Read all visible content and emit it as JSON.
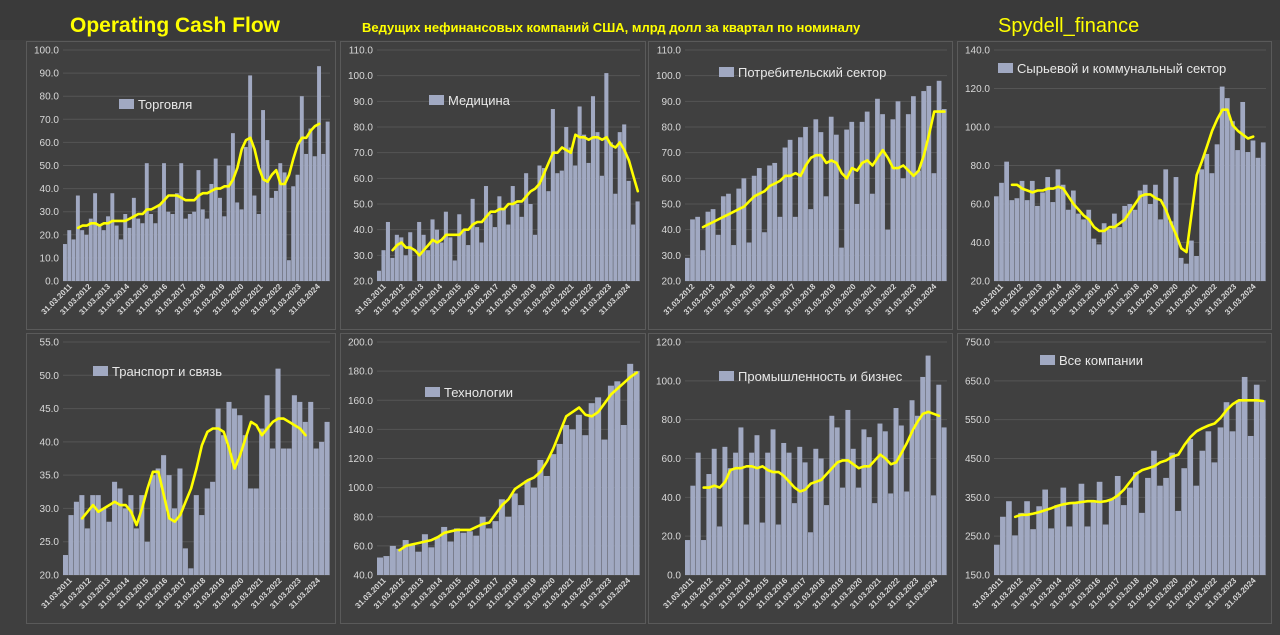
{
  "header": {
    "title": "Operating Cash Flow",
    "subtitle": "Ведущих нефинансовых компаний США, млрд долл за квартал по номиналу",
    "brand": "Spydell_finance"
  },
  "colors": {
    "bar": "#a1a9c2",
    "line": "#ffff00",
    "grid": "#555555",
    "axis_text": "#d9d9d9"
  },
  "chart_data": [
    {
      "id": "torgovlya",
      "type": "bar",
      "legend": "Торговля",
      "ylim": [
        0,
        100
      ],
      "yticks": [
        0,
        10,
        20,
        30,
        40,
        50,
        60,
        70,
        80,
        90,
        100
      ],
      "decimals": 1,
      "grid": true,
      "xticks": [
        "31.03.2011",
        "31.03.2012",
        "31.03.2013",
        "31.03.2014",
        "31.03.2015",
        "31.03.2016",
        "31.03.2017",
        "31.03.2018",
        "31.03.2019",
        "31.03.2020",
        "31.03.2021",
        "31.03.2022",
        "31.03.2023",
        "31.03.2024"
      ],
      "series": [
        {
          "values": [
            16,
            22,
            18,
            37,
            22,
            20,
            27,
            38,
            24,
            22,
            28,
            38,
            24,
            18,
            29,
            23,
            36,
            27,
            25,
            51,
            29,
            25,
            33,
            51,
            30,
            29,
            38,
            51,
            27,
            29,
            30,
            48,
            31,
            27,
            42,
            53,
            36,
            28,
            50,
            64,
            34,
            31,
            58,
            89,
            37,
            29,
            74,
            61,
            36,
            39,
            51,
            47,
            9,
            41,
            46,
            80,
            55,
            66,
            54,
            93,
            55,
            69
          ]
        },
        {
          "type": "line",
          "values": [
            null,
            null,
            null,
            23,
            24,
            24,
            25,
            25,
            24,
            25,
            25,
            26,
            26,
            26,
            26,
            27,
            28,
            29,
            29,
            31,
            31,
            32,
            33,
            35,
            37,
            37,
            37,
            36,
            35,
            35,
            35,
            37,
            38,
            38,
            39,
            40,
            40,
            41,
            41,
            44,
            49,
            57,
            61,
            62,
            57,
            49,
            44,
            43,
            46,
            48,
            42,
            42,
            46,
            53,
            59,
            62,
            62,
            65,
            67,
            68
          ]
        }
      ]
    },
    {
      "id": "medicina",
      "type": "bar",
      "legend": "Медицина",
      "ylim": [
        20,
        110
      ],
      "yticks": [
        20,
        30,
        40,
        50,
        60,
        70,
        80,
        90,
        100,
        110
      ],
      "decimals": 1,
      "grid": true,
      "xticks": [
        "31.03.2011",
        "31.03.2012",
        "31.03.2013",
        "31.03.2014",
        "31.03.2015",
        "31.03.2016",
        "31.03.2017",
        "31.03.2018",
        "31.03.2019",
        "31.03.2020",
        "31.03.2021",
        "31.03.2022",
        "31.03.2023",
        "31.03.2024"
      ],
      "series": [
        {
          "values": [
            24,
            32,
            43,
            29,
            38,
            37,
            30,
            39,
            20,
            43,
            38,
            32,
            44,
            40,
            35,
            47,
            37,
            28,
            46,
            40,
            34,
            52,
            41,
            35,
            57,
            46,
            41,
            53,
            48,
            42,
            57,
            50,
            45,
            62,
            50,
            38,
            65,
            64,
            55,
            87,
            62,
            63,
            80,
            72,
            65,
            88,
            77,
            66,
            92,
            78,
            61,
            101,
            74,
            54,
            78,
            81,
            59,
            42,
            51
          ]
        },
        {
          "type": "line",
          "values": [
            null,
            null,
            null,
            32,
            34,
            35,
            33,
            33,
            32,
            30,
            32,
            34,
            36,
            35,
            36,
            38,
            38,
            38,
            38,
            40,
            40,
            42,
            43,
            43,
            45,
            47,
            47,
            48,
            48,
            50,
            50,
            51,
            51,
            53,
            55,
            56,
            58,
            62,
            66,
            70,
            70,
            72,
            71,
            70,
            77,
            76,
            76,
            75,
            76,
            76,
            75,
            76,
            73,
            72,
            74,
            71,
            67,
            61,
            55
          ]
        }
      ]
    },
    {
      "id": "potrebitelsky",
      "type": "bar",
      "legend": "Потребительский сектор",
      "ylim": [
        20,
        110
      ],
      "yticks": [
        20,
        30,
        40,
        50,
        60,
        70,
        80,
        90,
        100,
        110
      ],
      "decimals": 1,
      "grid": true,
      "xticks": [
        "31.03.2012",
        "31.03.2013",
        "31.03.2014",
        "31.03.2015",
        "31.03.2016",
        "31.03.2017",
        "31.03.2018",
        "31.03.2019",
        "31.03.2020",
        "31.03.2021",
        "31.03.2022",
        "31.03.2023",
        "31.03.2024"
      ],
      "series": [
        {
          "values": [
            29,
            44,
            45,
            32,
            47,
            48,
            38,
            53,
            54,
            34,
            56,
            60,
            35,
            61,
            64,
            39,
            65,
            66,
            45,
            72,
            75,
            45,
            76,
            80,
            48,
            83,
            78,
            53,
            84,
            77,
            33,
            79,
            82,
            50,
            82,
            86,
            54,
            91,
            85,
            40,
            83,
            90,
            60,
            85,
            92,
            63,
            94,
            96,
            62,
            98,
            87
          ]
        },
        {
          "type": "line",
          "values": [
            null,
            null,
            null,
            41,
            42,
            43,
            44,
            45,
            46,
            47,
            48,
            49,
            51,
            53,
            54,
            55,
            57,
            58,
            59,
            61,
            61,
            62,
            61,
            65,
            68,
            69,
            69,
            66,
            67,
            66,
            62,
            60,
            64,
            63,
            66,
            67,
            65,
            68,
            71,
            68,
            64,
            64,
            65,
            63,
            61,
            63,
            69,
            77,
            86,
            86,
            86
          ]
        }
      ]
    },
    {
      "id": "syrevoy",
      "type": "bar",
      "legend": "Сырьевой и коммунальный сектор",
      "ylim": [
        20,
        140
      ],
      "yticks": [
        20,
        40,
        60,
        80,
        100,
        120,
        140
      ],
      "decimals": 1,
      "grid": true,
      "xticks": [
        "31.03.2011",
        "31.03.2012",
        "31.03.2013",
        "31.03.2014",
        "31.03.2015",
        "31.03.2016",
        "31.03.2017",
        "31.03.2018",
        "31.03.2019",
        "31.03.2020",
        "31.03.2021",
        "31.03.2022",
        "31.03.2023",
        "31.03.2024"
      ],
      "series": [
        {
          "values": [
            64,
            71,
            82,
            62,
            63,
            72,
            62,
            72,
            59,
            66,
            74,
            61,
            78,
            70,
            57,
            67,
            55,
            52,
            57,
            42,
            39,
            50,
            47,
            55,
            48,
            59,
            60,
            57,
            67,
            70,
            60,
            70,
            52,
            78,
            51,
            74,
            32,
            29,
            41,
            33,
            78,
            86,
            76,
            91,
            121,
            115,
            103,
            88,
            113,
            87,
            93,
            84,
            92
          ]
        },
        {
          "type": "line",
          "values": [
            null,
            null,
            null,
            70,
            70,
            68,
            67,
            66,
            67,
            67,
            68,
            68,
            69,
            68,
            64,
            60,
            57,
            54,
            52,
            48,
            46,
            46,
            48,
            48,
            50,
            52,
            56,
            60,
            64,
            65,
            65,
            63,
            62,
            57,
            50,
            44,
            37,
            35,
            55,
            75,
            82,
            90,
            98,
            104,
            109,
            109,
            101,
            98,
            96,
            94,
            95
          ]
        }
      ]
    },
    {
      "id": "transport",
      "type": "bar",
      "legend": "Транспорт и связь",
      "ylim": [
        20,
        55
      ],
      "yticks": [
        20,
        25,
        30,
        35,
        40,
        45,
        50,
        55
      ],
      "decimals": 1,
      "grid": true,
      "xticks": [
        "31.03.2011",
        "31.03.2012",
        "31.03.2013",
        "31.03.2014",
        "31.03.2015",
        "31.03.2016",
        "31.03.2017",
        "31.03.2018",
        "31.03.2019",
        "31.03.2020",
        "31.03.2021",
        "31.03.2022",
        "31.03.2023",
        "31.03.2024"
      ],
      "series": [
        {
          "values": [
            23,
            29,
            31,
            32,
            27,
            32,
            32,
            30,
            28,
            34,
            33,
            30,
            32,
            27,
            32,
            25,
            35,
            36,
            38,
            35,
            30,
            36,
            24,
            21,
            32,
            29,
            33,
            34,
            45,
            41,
            46,
            45,
            44,
            41,
            33,
            33,
            42,
            47,
            39,
            51,
            39,
            39,
            47,
            46,
            43,
            46,
            39,
            40,
            43
          ]
        },
        {
          "type": "line",
          "values": [
            null,
            null,
            null,
            28.5,
            29.5,
            30.5,
            29.5,
            30,
            30.5,
            31,
            30.5,
            30.5,
            29.5,
            27.5,
            30,
            33,
            35.5,
            35.5,
            32,
            28.5,
            28,
            29,
            31,
            33,
            36,
            39.5,
            41.5,
            42,
            42,
            41.5,
            39,
            36,
            38,
            40.5,
            43,
            42.5,
            41,
            42,
            43,
            43.5,
            43.5,
            43,
            42.5,
            42,
            41
          ]
        }
      ]
    },
    {
      "id": "tehnologii",
      "type": "bar",
      "legend": "Технологии",
      "ylim": [
        40,
        200
      ],
      "yticks": [
        40,
        60,
        80,
        100,
        120,
        140,
        160,
        180,
        200
      ],
      "decimals": 1,
      "grid": true,
      "xticks": [
        "31.03.2011",
        "31.03.2012",
        "31.03.2013",
        "31.03.2014",
        "31.03.2015",
        "31.03.2016",
        "31.03.2017",
        "31.03.2018",
        "31.03.2019",
        "31.03.2020",
        "31.03.2021",
        "31.03.2022",
        "31.03.2023",
        "31.03.2024"
      ],
      "series": [
        {
          "values": [
            52,
            53,
            60,
            58,
            64,
            61,
            56,
            68,
            59,
            66,
            73,
            63,
            72,
            69,
            70,
            67,
            80,
            72,
            77,
            92,
            80,
            96,
            88,
            105,
            100,
            119,
            108,
            123,
            130,
            143,
            140,
            150,
            136,
            158,
            162,
            133,
            170,
            173,
            143,
            185,
            180
          ]
        },
        {
          "type": "line",
          "values": [
            null,
            null,
            null,
            57,
            60,
            61,
            62,
            63,
            64,
            66,
            69,
            70,
            71,
            71,
            71,
            73,
            75,
            76,
            82,
            88,
            92,
            99,
            102,
            105,
            107,
            111,
            118,
            127,
            138,
            149,
            152,
            155,
            150,
            149,
            152,
            158,
            164,
            168,
            172,
            176,
            179
          ]
        }
      ]
    },
    {
      "id": "promyshlennost",
      "type": "bar",
      "legend": "Промышленность и бизнес",
      "ylim": [
        0,
        120
      ],
      "yticks": [
        0,
        20,
        40,
        60,
        80,
        100,
        120
      ],
      "decimals": 1,
      "grid": true,
      "xticks": [
        "31.03.2011",
        "31.03.2012",
        "31.03.2013",
        "31.03.2014",
        "31.03.2015",
        "31.03.2016",
        "31.03.2017",
        "31.03.2018",
        "31.03.2019",
        "31.03.2020",
        "31.03.2021",
        "31.03.2022",
        "31.03.2023",
        "31.03.2024"
      ],
      "series": [
        {
          "values": [
            18,
            46,
            63,
            18,
            52,
            65,
            25,
            66,
            55,
            63,
            76,
            26,
            63,
            72,
            27,
            63,
            75,
            26,
            68,
            63,
            37,
            66,
            58,
            22,
            65,
            60,
            36,
            82,
            76,
            45,
            85,
            65,
            45,
            75,
            71,
            37,
            78,
            74,
            42,
            86,
            77,
            43,
            90,
            82,
            102,
            113,
            41,
            98,
            76
          ]
        },
        {
          "type": "line",
          "values": [
            null,
            null,
            null,
            45,
            45,
            46,
            45,
            48,
            54,
            55,
            55,
            56,
            56,
            55,
            56,
            54,
            53,
            53,
            51,
            48,
            45,
            43,
            44,
            47,
            48,
            49,
            52,
            55,
            58,
            59,
            59,
            57,
            55,
            56,
            56,
            59,
            62,
            60,
            57,
            58,
            63,
            68,
            74,
            79,
            83,
            84,
            83,
            82
          ]
        }
      ]
    },
    {
      "id": "vse",
      "type": "bar",
      "legend": "Все компании",
      "ylim": [
        150,
        750
      ],
      "yticks": [
        150,
        250,
        350,
        450,
        550,
        650,
        750
      ],
      "decimals": 1,
      "grid": true,
      "xticks": [
        "31.03.2011",
        "31.03.2012",
        "31.03.2013",
        "31.03.2014",
        "31.03.2015",
        "31.03.2016",
        "31.03.2017",
        "31.03.2018",
        "31.03.2019",
        "31.03.2020",
        "31.03.2021",
        "31.03.2022",
        "31.03.2023",
        "31.03.2024"
      ],
      "series": [
        {
          "values": [
            228,
            300,
            340,
            252,
            310,
            340,
            268,
            327,
            370,
            270,
            330,
            375,
            275,
            335,
            385,
            275,
            340,
            390,
            280,
            345,
            405,
            330,
            375,
            415,
            310,
            400,
            470,
            380,
            400,
            465,
            315,
            425,
            500,
            380,
            470,
            520,
            440,
            530,
            595,
            520,
            600,
            660,
            508,
            640,
            600
          ]
        },
        {
          "type": "line",
          "values": [
            null,
            null,
            null,
            300,
            305,
            305,
            308,
            312,
            317,
            322,
            328,
            332,
            335,
            336,
            338,
            340,
            340,
            338,
            340,
            345,
            355,
            370,
            390,
            410,
            420,
            425,
            430,
            440,
            445,
            455,
            460,
            485,
            505,
            520,
            528,
            535,
            540,
            555,
            575,
            590,
            600,
            600,
            600,
            600,
            598
          ]
        }
      ]
    }
  ]
}
